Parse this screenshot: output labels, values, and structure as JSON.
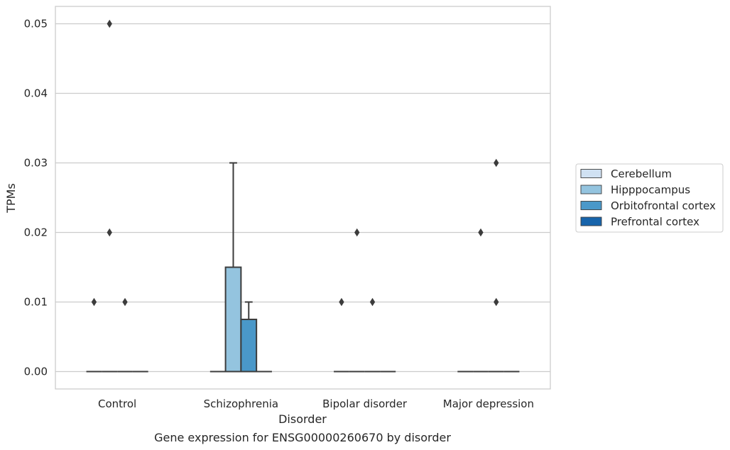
{
  "chart_data": {
    "type": "box",
    "xlabel": "Disorder",
    "ylabel": "TPMs",
    "caption": "Gene expression for ENSG00000260670 by disorder",
    "categories": [
      "Control",
      "Schizophrenia",
      "Bipolar disorder",
      "Major depression"
    ],
    "ylim": [
      -0.0025,
      0.0525
    ],
    "yticks": [
      "0.00",
      "0.01",
      "0.02",
      "0.03",
      "0.04",
      "0.05"
    ],
    "grid": "horizontal",
    "legend_position": "right",
    "series": [
      {
        "name": "Cerebellum",
        "color": "#d0e1f2",
        "boxes": [
          {
            "category": "Control",
            "q1": 0,
            "median": 0,
            "q3": 0,
            "whisker_low": 0,
            "whisker_high": 0,
            "outliers": [
              0.01
            ]
          },
          {
            "category": "Schizophrenia",
            "q1": 0,
            "median": 0,
            "q3": 0,
            "whisker_low": 0,
            "whisker_high": 0,
            "outliers": []
          },
          {
            "category": "Bipolar disorder",
            "q1": 0,
            "median": 0,
            "q3": 0,
            "whisker_low": 0,
            "whisker_high": 0,
            "outliers": [
              0.01
            ]
          },
          {
            "category": "Major depression",
            "q1": 0,
            "median": 0,
            "q3": 0,
            "whisker_low": 0,
            "whisker_high": 0,
            "outliers": []
          }
        ]
      },
      {
        "name": "Hipppocampus",
        "color": "#94c4df",
        "boxes": [
          {
            "category": "Control",
            "q1": 0,
            "median": 0,
            "q3": 0,
            "whisker_low": 0,
            "whisker_high": 0,
            "outliers": [
              0.05,
              0.02
            ]
          },
          {
            "category": "Schizophrenia",
            "q1": 0,
            "median": 0,
            "q3": 0.015,
            "whisker_low": 0,
            "whisker_high": 0.03,
            "outliers": []
          },
          {
            "category": "Bipolar disorder",
            "q1": 0,
            "median": 0,
            "q3": 0,
            "whisker_low": 0,
            "whisker_high": 0,
            "outliers": [
              0.02
            ]
          },
          {
            "category": "Major depression",
            "q1": 0,
            "median": 0,
            "q3": 0,
            "whisker_low": 0,
            "whisker_high": 0,
            "outliers": [
              0.02
            ]
          }
        ]
      },
      {
        "name": "Orbitofrontal cortex",
        "color": "#4a98c9",
        "boxes": [
          {
            "category": "Control",
            "q1": 0,
            "median": 0,
            "q3": 0,
            "whisker_low": 0,
            "whisker_high": 0,
            "outliers": [
              0.01
            ]
          },
          {
            "category": "Schizophrenia",
            "q1": 0,
            "median": 0,
            "q3": 0.0075,
            "whisker_low": 0,
            "whisker_high": 0.01,
            "outliers": []
          },
          {
            "category": "Bipolar disorder",
            "q1": 0,
            "median": 0,
            "q3": 0,
            "whisker_low": 0,
            "whisker_high": 0,
            "outliers": [
              0.01
            ]
          },
          {
            "category": "Major depression",
            "q1": 0,
            "median": 0,
            "q3": 0,
            "whisker_low": 0,
            "whisker_high": 0,
            "outliers": [
              0.03,
              0.01
            ]
          }
        ]
      },
      {
        "name": "Prefrontal cortex",
        "color": "#1764ab",
        "boxes": [
          {
            "category": "Control",
            "q1": 0,
            "median": 0,
            "q3": 0,
            "whisker_low": 0,
            "whisker_high": 0,
            "outliers": []
          },
          {
            "category": "Schizophrenia",
            "q1": 0,
            "median": 0,
            "q3": 0,
            "whisker_low": 0,
            "whisker_high": 0,
            "outliers": []
          },
          {
            "category": "Bipolar disorder",
            "q1": 0,
            "median": 0,
            "q3": 0,
            "whisker_low": 0,
            "whisker_high": 0,
            "outliers": []
          },
          {
            "category": "Major depression",
            "q1": 0,
            "median": 0,
            "q3": 0,
            "whisker_low": 0,
            "whisker_high": 0,
            "outliers": []
          }
        ]
      }
    ]
  },
  "style": {
    "grid_color": "#cccccc",
    "frame_color": "#cccccc",
    "line_color": "#3c3c3c",
    "text_color": "#262626"
  }
}
